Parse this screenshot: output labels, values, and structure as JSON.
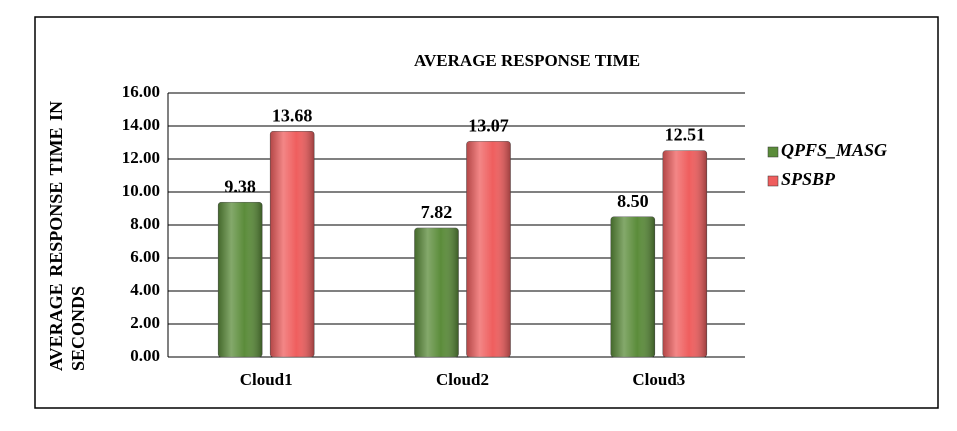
{
  "chart_data": {
    "type": "bar",
    "title": "AVERAGE RESPONSE TIME",
    "y_label": "AVERAGE RESPONSE TIME IN SECONDS",
    "categories": [
      "Cloud1",
      "Cloud2",
      "Cloud3"
    ],
    "series": [
      {
        "name": "QPFS_MASG",
        "color": "#5b8c3a",
        "values": [
          9.38,
          7.82,
          8.5
        ],
        "value_labels": [
          "9.38",
          "7.82",
          "8.50"
        ]
      },
      {
        "name": "SPSBP",
        "color": "#ef5e5e",
        "values": [
          13.68,
          13.07,
          12.51
        ],
        "value_labels": [
          "13.68",
          "13.07",
          "12.51"
        ]
      }
    ],
    "ylim": [
      0,
      16
    ],
    "yticks": [
      {
        "value": 0,
        "label": "0.00"
      },
      {
        "value": 2,
        "label": "2.00"
      },
      {
        "value": 4,
        "label": "4.00"
      },
      {
        "value": 6,
        "label": "6.00"
      },
      {
        "value": 8,
        "label": "8.00"
      },
      {
        "value": 10,
        "label": "10.00"
      },
      {
        "value": 12,
        "label": "12.00"
      },
      {
        "value": 14,
        "label": "14.00"
      },
      {
        "value": 16,
        "label": "16.00"
      }
    ],
    "grid": true,
    "legend": "right"
  }
}
